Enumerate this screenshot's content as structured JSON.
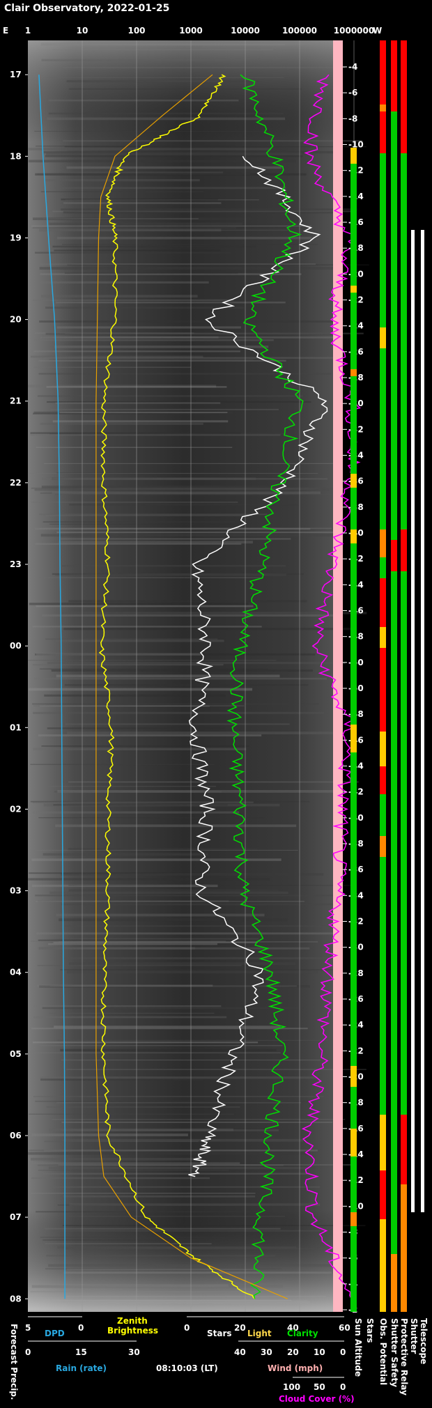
{
  "title": "Clair Observatory, 2022-01-25",
  "compass": {
    "east": "E",
    "west": "W"
  },
  "top_axis": {
    "ticks": [
      "1",
      "10",
      "100",
      "1000",
      "10000",
      "100000",
      "1000000"
    ]
  },
  "time_axis": {
    "ticks": [
      "17",
      "18",
      "19",
      "20",
      "21",
      "22",
      "23",
      "00",
      "01",
      "02",
      "03",
      "04",
      "05",
      "06",
      "07",
      "08"
    ]
  },
  "sun_altitude_ticks": [
    "-4",
    "-6",
    "-8",
    "-10",
    "-12",
    "-14",
    "-16",
    "-18",
    "-20",
    "-22",
    "-24",
    "-26",
    "-28",
    "-30",
    "-32",
    "-34",
    "-36",
    "-38",
    "-40",
    "-42",
    "-44",
    "-46",
    "-48",
    "-50",
    "-50",
    "-48",
    "-46",
    "-44",
    "-42",
    "-40",
    "-38",
    "-36",
    "-34",
    "-32",
    "-30",
    "-28",
    "-26",
    "-24",
    "-22",
    "-20",
    "-18",
    "-16",
    "-14",
    "-12",
    "-10",
    "-8",
    "-6",
    "-4",
    "-2"
  ],
  "bottom": {
    "dpd_ticks": [
      "5",
      "0"
    ],
    "dpd_label": "DPD",
    "zenith_label_1": "Zenith",
    "zenith_label_2": "Brightness",
    "stars_ticks": [
      "0",
      "20",
      "40",
      "60"
    ],
    "stars_label": "Stars",
    "light_label": "Light",
    "clarity_label": "Clarity",
    "rain_ticks": [
      "0",
      "15",
      "30"
    ],
    "rain_label": "Rain (rate)",
    "timestamp": "08:10:03 (LT)",
    "wind_ticks": [
      "40",
      "30",
      "20",
      "10",
      "0"
    ],
    "wind_label": "Wind (mph)",
    "cloud_ticks": [
      "100",
      "50",
      "0"
    ],
    "cloud_label": "Cloud Cover (%)",
    "forecast_label": "Forecast Precip."
  },
  "right_columns": [
    "Sun Altitude",
    "Stars",
    "Obs. Potential",
    "Shutter Safety",
    "Protective Relay",
    "Shutter",
    "Telescope"
  ],
  "colors": {
    "dpd": "#29a8e0",
    "zenith": "#ffff00",
    "sun_model": "#e8a000",
    "stars": "#ffffff",
    "light": "#ffd84a",
    "clarity": "#00e000",
    "cloud": "#ff00ff",
    "wind": "#ffb0b0",
    "good": "#00cc00",
    "warn": "#ffcc00",
    "bad": "#ff0000",
    "mid": "#ff8800"
  },
  "chart_data": {
    "type": "line",
    "x_axis": "local time",
    "x_start": "16:35",
    "x_end": "08:10",
    "y_axis_top": "brightness (log, 1 to 1000000)",
    "series": [
      {
        "name": "DPD",
        "points": [
          [
            "17",
            1.6
          ],
          [
            "18",
            1.9
          ],
          [
            "19",
            2.4
          ],
          [
            "20",
            3.1
          ],
          [
            "21",
            3.6
          ],
          [
            "22",
            3.8
          ],
          [
            "23",
            3.9
          ],
          [
            "00",
            4.1
          ],
          [
            "01",
            4.2
          ],
          [
            "02",
            4.3
          ],
          [
            "03",
            4.4
          ],
          [
            "04",
            4.5
          ],
          [
            "05",
            4.7
          ],
          [
            "06",
            4.8
          ],
          [
            "07",
            4.8
          ],
          [
            "08",
            4.8
          ]
        ]
      },
      {
        "name": "Zenith Brightness",
        "points": [
          [
            "17",
            4000
          ],
          [
            "17.5",
            1500
          ],
          [
            "18",
            60
          ],
          [
            "18.5",
            30
          ],
          [
            "19",
            40
          ],
          [
            "20",
            40
          ],
          [
            "21",
            25
          ],
          [
            "22",
            25
          ],
          [
            "23",
            30
          ],
          [
            "00",
            22
          ],
          [
            "01",
            35
          ],
          [
            "02",
            30
          ],
          [
            "03",
            30
          ],
          [
            "04",
            25
          ],
          [
            "05",
            25
          ],
          [
            "06",
            30
          ],
          [
            "07",
            150
          ],
          [
            "07.5",
            1200
          ],
          [
            "08",
            15000
          ]
        ]
      },
      {
        "name": "Stars",
        "points": [
          [
            "18",
            12000
          ],
          [
            "19",
            200000
          ],
          [
            "20",
            2000
          ],
          [
            "21",
            300000
          ],
          [
            "22",
            60000
          ],
          [
            "23",
            1200
          ],
          [
            "00",
            2000
          ],
          [
            "01",
            1200
          ],
          [
            "02",
            2000
          ],
          [
            "03",
            1500
          ],
          [
            "04",
            20000
          ],
          [
            "05",
            6000
          ],
          [
            "06",
            2000
          ],
          [
            "06.5",
            1200
          ]
        ]
      },
      {
        "name": "Clarity",
        "points": [
          [
            "17",
            10000
          ],
          [
            "18",
            35000
          ],
          [
            "19",
            80000
          ],
          [
            "20",
            10000
          ],
          [
            "21",
            100000
          ],
          [
            "22",
            40000
          ],
          [
            "23",
            20000
          ],
          [
            "00",
            8000
          ],
          [
            "01",
            6000
          ],
          [
            "02",
            8000
          ],
          [
            "03",
            9000
          ],
          [
            "04",
            30000
          ],
          [
            "05",
            45000
          ],
          [
            "06",
            30000
          ],
          [
            "07",
            20000
          ],
          [
            "08",
            15000
          ]
        ]
      },
      {
        "name": "Cloud Cover",
        "points": [
          [
            "17",
            300000
          ],
          [
            "18",
            150000
          ],
          [
            "19",
            800000
          ],
          [
            "20",
            400000
          ],
          [
            "21",
            950000
          ],
          [
            "22",
            900000
          ],
          [
            "23",
            400000
          ],
          [
            "00",
            200000
          ],
          [
            "01",
            800000
          ],
          [
            "02",
            600000
          ],
          [
            "03",
            500000
          ],
          [
            "04",
            350000
          ],
          [
            "05",
            250000
          ],
          [
            "06",
            150000
          ],
          [
            "07",
            180000
          ],
          [
            "08",
            900000
          ]
        ]
      }
    ]
  }
}
